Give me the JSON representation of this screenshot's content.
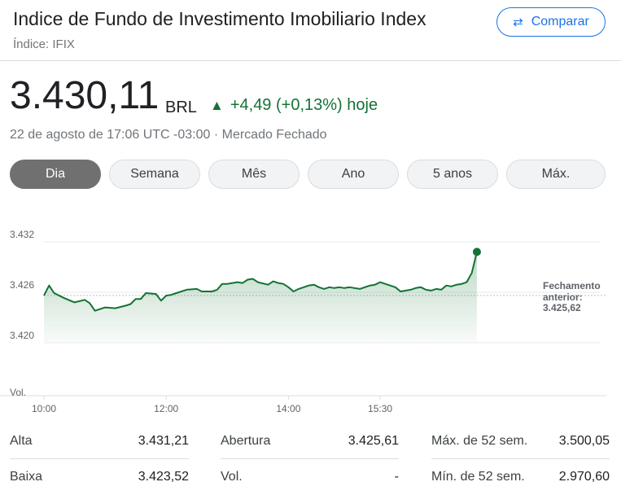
{
  "header": {
    "title": "Indice de Fundo de Investimento Imobiliario Index",
    "subtitle": "Índice: IFIX",
    "compare_label": "Comparar"
  },
  "quote": {
    "price": "3.430,11",
    "currency": "BRL",
    "change": "+4,49 (+0,13%) hoje",
    "timestamp": "22 de agosto de 17:06 UTC -03:00 · Mercado Fechado"
  },
  "tabs": [
    {
      "label": "Dia",
      "active": true
    },
    {
      "label": "Semana",
      "active": false
    },
    {
      "label": "Mês",
      "active": false
    },
    {
      "label": "Ano",
      "active": false
    },
    {
      "label": "5 anos",
      "active": false
    },
    {
      "label": "Máx.",
      "active": false
    }
  ],
  "colors": {
    "up": "#137333",
    "line": "#137333",
    "accent": "#1a73e8"
  },
  "chart_data": {
    "type": "area",
    "x_ticks": [
      "10:00",
      "12:00",
      "14:00",
      "15:30"
    ],
    "y_ticks": [
      "3.432",
      "3.426",
      "3.420"
    ],
    "ylim": [
      3.418,
      3.433
    ],
    "vol_label": "Vol.",
    "prev_close_label_line1": "Fechamento",
    "prev_close_label_line2": "anterior:",
    "prev_close_value": "3.425,62",
    "prev_close": 3425.62,
    "series": [
      {
        "x": [
          "10:00",
          "10:05",
          "10:10",
          "10:20",
          "10:30",
          "10:40",
          "10:45",
          "10:50",
          "11:00",
          "11:10",
          "11:20",
          "11:25",
          "11:30",
          "11:35",
          "11:40",
          "11:50",
          "11:55",
          "12:00",
          "12:05",
          "12:10",
          "12:20",
          "12:30",
          "12:35",
          "12:45",
          "12:50",
          "12:55",
          "13:00",
          "13:05",
          "13:10",
          "13:15",
          "13:20",
          "13:25",
          "13:30",
          "13:40",
          "13:45",
          "13:50",
          "13:55",
          "14:00",
          "14:05",
          "14:10",
          "14:15",
          "14:20",
          "14:25",
          "14:30",
          "14:35",
          "14:40",
          "14:45",
          "14:50",
          "14:55",
          "15:00",
          "15:10",
          "15:20",
          "15:25",
          "15:30",
          "15:35",
          "15:45",
          "15:50",
          "16:00",
          "16:05",
          "16:10",
          "16:15",
          "16:20",
          "16:25",
          "16:30",
          "16:35",
          "16:40",
          "16:45",
          "16:50",
          "16:55",
          "17:00",
          "17:05"
        ],
        "y": [
          3425.6,
          3426.8,
          3425.9,
          3425.3,
          3424.8,
          3425.1,
          3424.7,
          3423.8,
          3424.2,
          3424.1,
          3424.4,
          3424.6,
          3425.2,
          3425.2,
          3425.9,
          3425.8,
          3425.0,
          3425.6,
          3425.7,
          3425.9,
          3426.3,
          3426.4,
          3426.1,
          3426.1,
          3426.3,
          3427.0,
          3427.0,
          3427.1,
          3427.2,
          3427.1,
          3427.5,
          3427.6,
          3427.2,
          3426.9,
          3427.3,
          3427.1,
          3427.0,
          3426.6,
          3426.1,
          3426.4,
          3426.6,
          3426.8,
          3426.9,
          3426.6,
          3426.4,
          3426.6,
          3426.5,
          3426.6,
          3426.5,
          3426.6,
          3426.4,
          3426.8,
          3426.9,
          3427.2,
          3427.0,
          3426.6,
          3426.1,
          3426.3,
          3426.5,
          3426.6,
          3426.3,
          3426.2,
          3426.4,
          3426.3,
          3426.8,
          3426.7,
          3426.9,
          3427.0,
          3427.2,
          3428.3,
          3430.8
        ]
      }
    ],
    "grid": true
  },
  "stats": [
    {
      "label": "Alta",
      "value": "3.431,21"
    },
    {
      "label": "Abertura",
      "value": "3.425,61"
    },
    {
      "label": "Máx. de 52 sem.",
      "value": "3.500,05"
    },
    {
      "label": "Baixa",
      "value": "3.423,52"
    },
    {
      "label": "Vol.",
      "value": "-"
    },
    {
      "label": "Mín. de 52 sem.",
      "value": "2.970,60"
    }
  ]
}
